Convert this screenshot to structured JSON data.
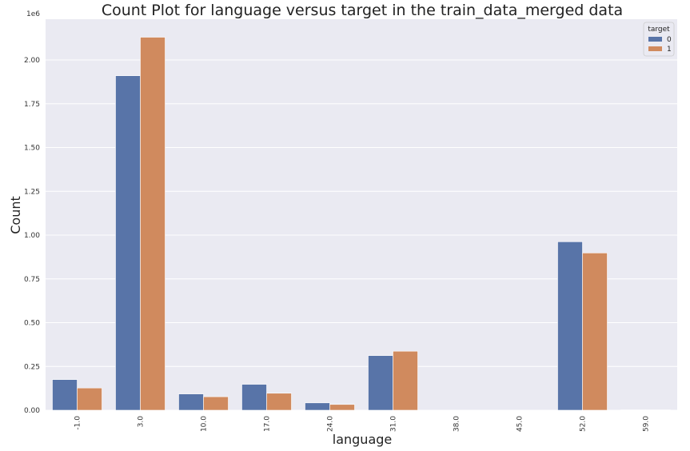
{
  "chart_data": {
    "type": "bar",
    "title": "Count Plot for language versus target in the train_data_merged data",
    "xlabel": "language",
    "ylabel": "Count",
    "y_offset_text": "1e6",
    "categories": [
      "-1.0",
      "3.0",
      "10.0",
      "17.0",
      "24.0",
      "31.0",
      "38.0",
      "45.0",
      "52.0",
      "59.0"
    ],
    "ylim": [
      0,
      2.2
    ],
    "yticks": [
      "0.00",
      "0.25",
      "0.50",
      "0.75",
      "1.00",
      "1.25",
      "1.50",
      "1.75",
      "2.00"
    ],
    "ytick_values": [
      0,
      0.25,
      0.5,
      0.75,
      1.0,
      1.25,
      1.5,
      1.75,
      2.0
    ],
    "legend_title": "target",
    "legend_position": "top-right",
    "grid": true,
    "series": [
      {
        "name": "0",
        "color": "#5874a8",
        "values": [
          0.175,
          1.91,
          0.093,
          0.148,
          0.042,
          0.312,
          0.0,
          0.0,
          0.962,
          0.002
        ]
      },
      {
        "name": "1",
        "color": "#d08a5e",
        "values": [
          0.127,
          2.13,
          0.077,
          0.097,
          0.033,
          0.337,
          0.0,
          0.0,
          0.898,
          0.002
        ]
      }
    ]
  }
}
